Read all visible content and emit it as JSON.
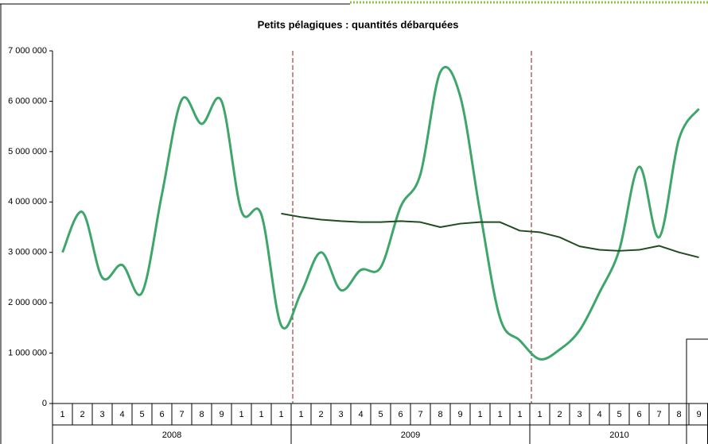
{
  "chart_data": {
    "type": "line",
    "title": "Petits pélagiques : quantités débarquées",
    "category_groups": [
      {
        "name": "2008",
        "categories": [
          "1",
          "2",
          "3",
          "4",
          "5",
          "6",
          "7",
          "8",
          "9",
          "1",
          "1",
          "1"
        ]
      },
      {
        "name": "2009",
        "categories": [
          "1",
          "2",
          "3",
          "4",
          "5",
          "6",
          "7",
          "8",
          "9",
          "1",
          "1",
          "1"
        ]
      },
      {
        "name": "2010",
        "categories": [
          "1",
          "2",
          "3",
          "4",
          "5",
          "6",
          "7",
          "8",
          "9"
        ]
      }
    ],
    "series": [
      {
        "color": "#3ea66b",
        "smooth": true,
        "values": [
          3000000,
          3800000,
          2500000,
          2750000,
          2200000,
          4150000,
          6030000,
          5550000,
          6000000,
          3820000,
          3750000,
          1550000,
          2200000,
          3000000,
          2250000,
          2650000,
          2700000,
          3900000,
          4550000,
          6580000,
          6100000,
          3800000,
          1700000,
          1250000,
          880000,
          1070000,
          1450000,
          2200000,
          3050000,
          4700000,
          3300000,
          5250000,
          5850000
        ]
      },
      {
        "color": "#1f4d1f",
        "smooth": false,
        "values": [
          null,
          null,
          null,
          null,
          null,
          null,
          null,
          null,
          null,
          null,
          null,
          3770000,
          3700000,
          3650000,
          3620000,
          3600000,
          3600000,
          3620000,
          3600000,
          3500000,
          3570000,
          3600000,
          3600000,
          3430000,
          3400000,
          3300000,
          3120000,
          3050000,
          3030000,
          3050000,
          3130000,
          3000000,
          2900000
        ]
      }
    ],
    "ylim": [
      0,
      7000000
    ],
    "yticks": [
      {
        "value": 0,
        "label": "0"
      },
      {
        "value": 1000000,
        "label": "1 000 000"
      },
      {
        "value": 2000000,
        "label": "2 000 000"
      },
      {
        "value": 3000000,
        "label": "3 000 000"
      },
      {
        "value": 4000000,
        "label": "4 000 000"
      },
      {
        "value": 5000000,
        "label": "5 000 000"
      },
      {
        "value": 6000000,
        "label": "6 000 000"
      },
      {
        "value": 7000000,
        "label": "7 000 000"
      }
    ],
    "grid": false,
    "group_separators": true
  }
}
